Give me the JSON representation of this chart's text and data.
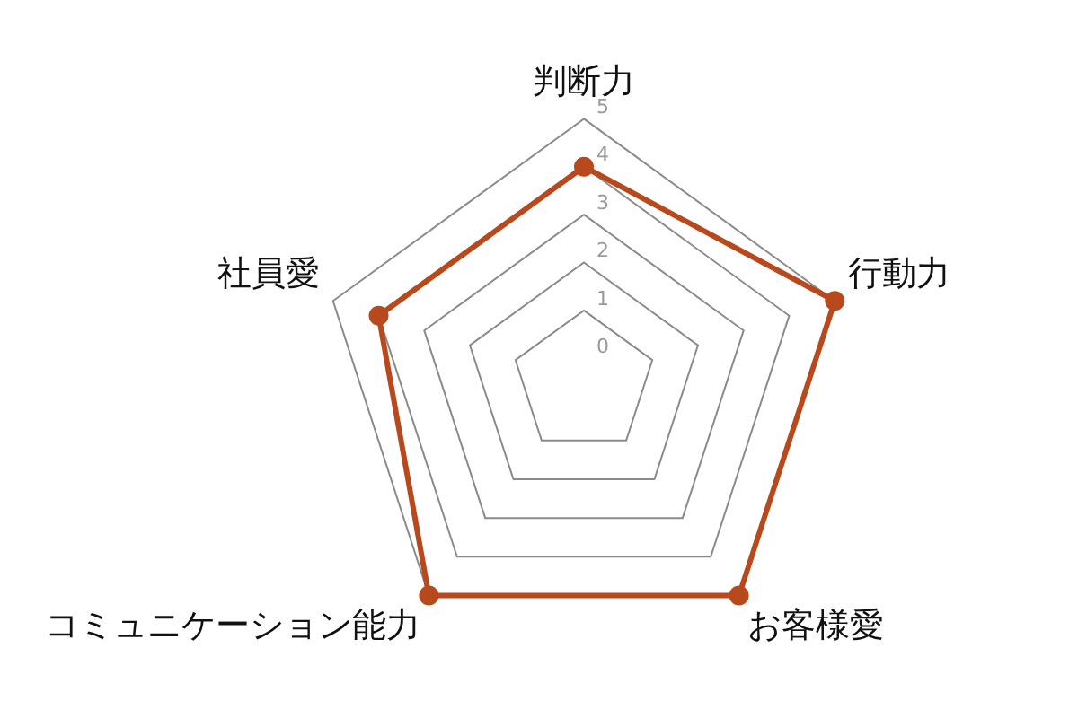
{
  "chart_data": {
    "type": "radar",
    "categories": [
      "判断力",
      "行動力",
      "お客様愛",
      "コミュニケーション能力",
      "社員愛"
    ],
    "series": [
      {
        "color": "#b8491c",
        "values": [
          4,
          5,
          5,
          5,
          4
        ]
      }
    ],
    "ylim": [
      -0.5,
      5
    ],
    "yticks": [
      0,
      1,
      2,
      3,
      4,
      5
    ],
    "marker": "circle",
    "legend": false
  }
}
